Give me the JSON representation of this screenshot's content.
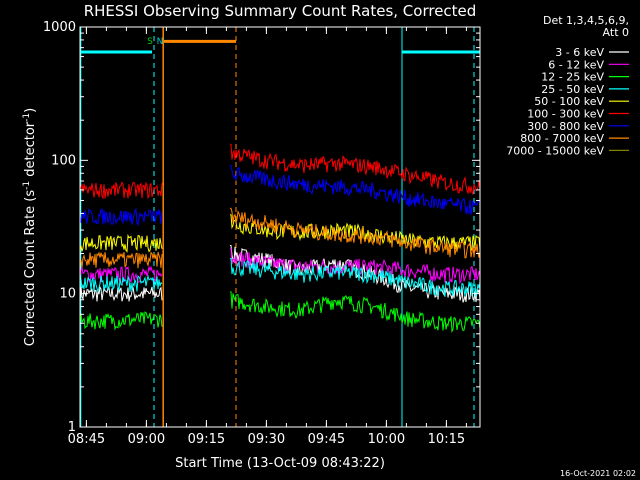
{
  "chart_data": {
    "type": "line",
    "title": "RHESSI Observing Summary Count Rates, Corrected",
    "xlabel": "Start Time (13-Oct-09 08:43:22)",
    "ylabel_main": "Corrected Count Rate (s",
    "ylabel_sup1": "-1",
    "ylabel_mid": " detector",
    "ylabel_sup2": "-1",
    "ylabel_end": ")",
    "yscale": "log",
    "ylim": [
      1,
      1000
    ],
    "xlim": [
      0,
      100
    ],
    "x_start_label": "08:43:22",
    "x_ticks": [
      {
        "x": 1.6,
        "label": "08:45"
      },
      {
        "x": 16.6,
        "label": "09:00"
      },
      {
        "x": 31.6,
        "label": "09:15"
      },
      {
        "x": 46.6,
        "label": "09:30"
      },
      {
        "x": 61.6,
        "label": "09:45"
      },
      {
        "x": 76.6,
        "label": "10:00"
      },
      {
        "x": 91.6,
        "label": "10:15"
      }
    ],
    "y_ticks": [
      {
        "y": 1,
        "label": "1"
      },
      {
        "y": 10,
        "label": "10"
      },
      {
        "y": 100,
        "label": "100"
      },
      {
        "y": 1000,
        "label": "1000"
      }
    ],
    "legend_header": [
      "Det 1,3,4,5,6,9,",
      "Att 0"
    ],
    "series": [
      {
        "name": "3 - 6 keV",
        "color": "#ffffff",
        "segA": {
          "t": [
            0,
            20.5
          ],
          "base": [
            10,
            10
          ]
        },
        "segB": {
          "t": [
            37.5,
            100
          ],
          "base": [
            20,
            18,
            15,
            17,
            14,
            11,
            10,
            10
          ]
        }
      },
      {
        "name": "6 - 12 keV",
        "color": "#ff00ff",
        "segA": {
          "t": [
            0,
            20.5
          ],
          "base": [
            14,
            14
          ]
        },
        "segB": {
          "t": [
            37.5,
            100
          ],
          "base": [
            19,
            17,
            16,
            16,
            16,
            15,
            14,
            14
          ]
        }
      },
      {
        "name": "12 - 25 keV",
        "color": "#00ff00",
        "segA": {
          "t": [
            0,
            20.5
          ],
          "base": [
            6.2,
            6.5
          ]
        },
        "segB": {
          "t": [
            37.5,
            100
          ],
          "base": [
            9,
            8,
            7.5,
            9,
            8,
            6.5,
            6,
            6
          ]
        }
      },
      {
        "name": "25 - 50 keV",
        "color": "#00ffff",
        "segA": {
          "t": [
            0,
            20.5
          ],
          "base": [
            12,
            12
          ]
        },
        "segB": {
          "t": [
            37.5,
            100
          ],
          "base": [
            16,
            15,
            14,
            14.5,
            14,
            12,
            11,
            11
          ]
        }
      },
      {
        "name": "50 - 100 keV",
        "color": "#ffff00",
        "segA": {
          "t": [
            0,
            20.5
          ],
          "base": [
            24,
            24
          ]
        },
        "segB": {
          "t": [
            37.5,
            100
          ],
          "base": [
            34,
            30,
            29,
            30,
            28,
            25,
            24,
            24
          ]
        }
      },
      {
        "name": "100 - 300 keV",
        "color": "#ff0000",
        "segA": {
          "t": [
            0,
            20.5
          ],
          "base": [
            60,
            60
          ]
        },
        "segB": {
          "t": [
            37.5,
            100
          ],
          "base": [
            115,
            100,
            92,
            95,
            90,
            78,
            68,
            63
          ]
        }
      },
      {
        "name": "300 - 800 keV",
        "color": "#0000ff",
        "segA": {
          "t": [
            0,
            20.5
          ],
          "base": [
            38,
            38
          ]
        },
        "segB": {
          "t": [
            37.5,
            100
          ],
          "base": [
            80,
            72,
            66,
            64,
            60,
            52,
            47,
            44
          ]
        }
      },
      {
        "name": "800 - 7000 keV",
        "color": "#ff8800",
        "segA": {
          "t": [
            0,
            20.5
          ],
          "base": [
            18,
            18
          ]
        },
        "segB": {
          "t": [
            37.5,
            100
          ],
          "base": [
            38,
            34,
            30,
            28,
            27,
            24,
            22,
            21
          ]
        }
      },
      {
        "name": "7000 - 15000 keV",
        "color": "#808000",
        "segA": {
          "t": [
            0,
            20.5
          ],
          "base": [
            1,
            1
          ]
        },
        "segB": {
          "t": [
            37.5,
            100
          ],
          "base": [
            1,
            1
          ]
        }
      }
    ],
    "markers": {
      "cyan_bars": [
        {
          "x": [
            0,
            18
          ],
          "y": 650
        },
        {
          "x": [
            80.5,
            100
          ],
          "y": 650
        }
      ],
      "orange_bar": {
        "x": [
          21,
          39
        ],
        "y": 780
      },
      "cyan_solid": [
        0.2,
        80.5
      ],
      "cyan_dashed": [
        18.5,
        98.5
      ],
      "orange_solid": 20.8,
      "orange_dashed": 39,
      "flag_s": {
        "x": 17.5,
        "text": "S",
        "color": "#00cc00"
      },
      "flag_n": {
        "x": 20,
        "text": "N",
        "color": "#00cccc"
      }
    },
    "stamp": "16-Oct-2021 02:02"
  }
}
